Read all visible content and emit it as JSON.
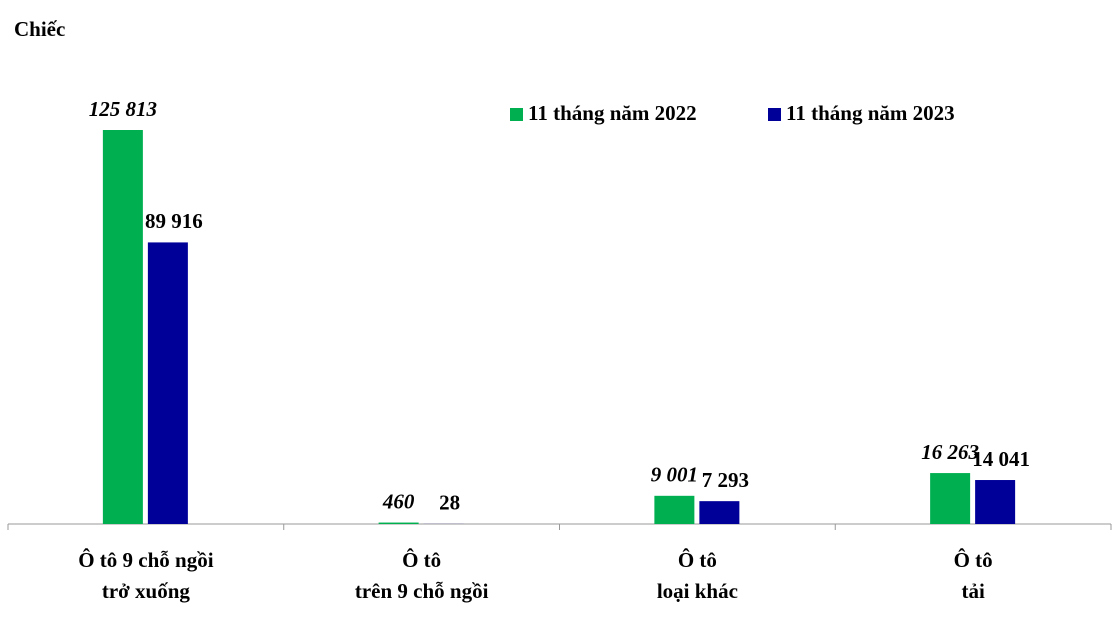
{
  "chart_data": {
    "type": "bar",
    "title": "Chiếc",
    "categories": [
      [
        "Ô tô 9 chỗ ngồi",
        "trở xuống"
      ],
      [
        "Ô tô",
        "trên 9 chỗ ngồi"
      ],
      [
        "Ô tô",
        "loại khác"
      ],
      [
        "Ô tô",
        "tải"
      ]
    ],
    "series": [
      {
        "name": "11 tháng năm 2022",
        "color": "#00b050",
        "values": [
          125813,
          460,
          9001,
          16263
        ],
        "value_labels": [
          "125 813",
          "460",
          "9 001",
          "16 263"
        ]
      },
      {
        "name": "11 tháng năm 2023",
        "color": "#000099",
        "values": [
          89916,
          28,
          7293,
          14041
        ],
        "value_labels": [
          "89 916",
          "28",
          "7 293",
          "14 041"
        ]
      }
    ],
    "legend": "top-right"
  }
}
